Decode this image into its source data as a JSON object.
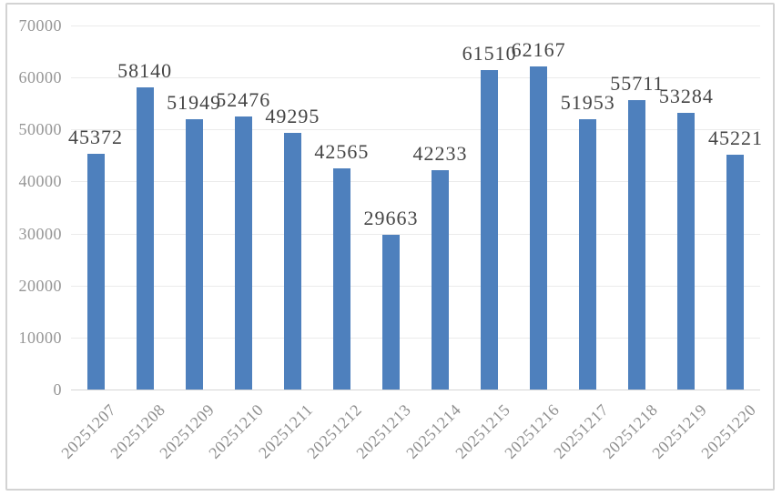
{
  "chart_data": {
    "type": "bar",
    "title": "",
    "xlabel": "",
    "ylabel": "",
    "categories": [
      "20251207",
      "20251208",
      "20251209",
      "20251210",
      "20251211",
      "20251212",
      "20251213",
      "20251214",
      "20251215",
      "20251216",
      "20251217",
      "20251218",
      "20251219",
      "20251220"
    ],
    "values": [
      45372,
      58140,
      51949,
      52476,
      49295,
      42565,
      29663,
      42233,
      61510,
      62167,
      51953,
      55711,
      53284,
      45221
    ],
    "data_labels": [
      "45372",
      "58140",
      "51949",
      "52476",
      "49295",
      "42565",
      "29663",
      "42233",
      "61510",
      "62167",
      "51953",
      "55711",
      "53284",
      "45221"
    ],
    "ylim": [
      0,
      70000
    ],
    "yticks": [
      0,
      10000,
      20000,
      30000,
      40000,
      50000,
      60000,
      70000
    ],
    "ytick_labels": [
      "0",
      "10000",
      "20000",
      "30000",
      "40000",
      "50000",
      "60000",
      "70000"
    ],
    "grid": true,
    "legend_position": "none",
    "x_label_rotation_deg": 45,
    "show_data_labels": true
  },
  "colors": {
    "bar_fill": "#4e80bd",
    "gridline": "#ebebeb",
    "axis_line": "#d6d6d6",
    "y_tick_label": "#969696",
    "x_tick_label": "#8f8f8f",
    "data_label": "#454545",
    "frame_border": "#d3d3d3",
    "background": "#ffffff"
  }
}
